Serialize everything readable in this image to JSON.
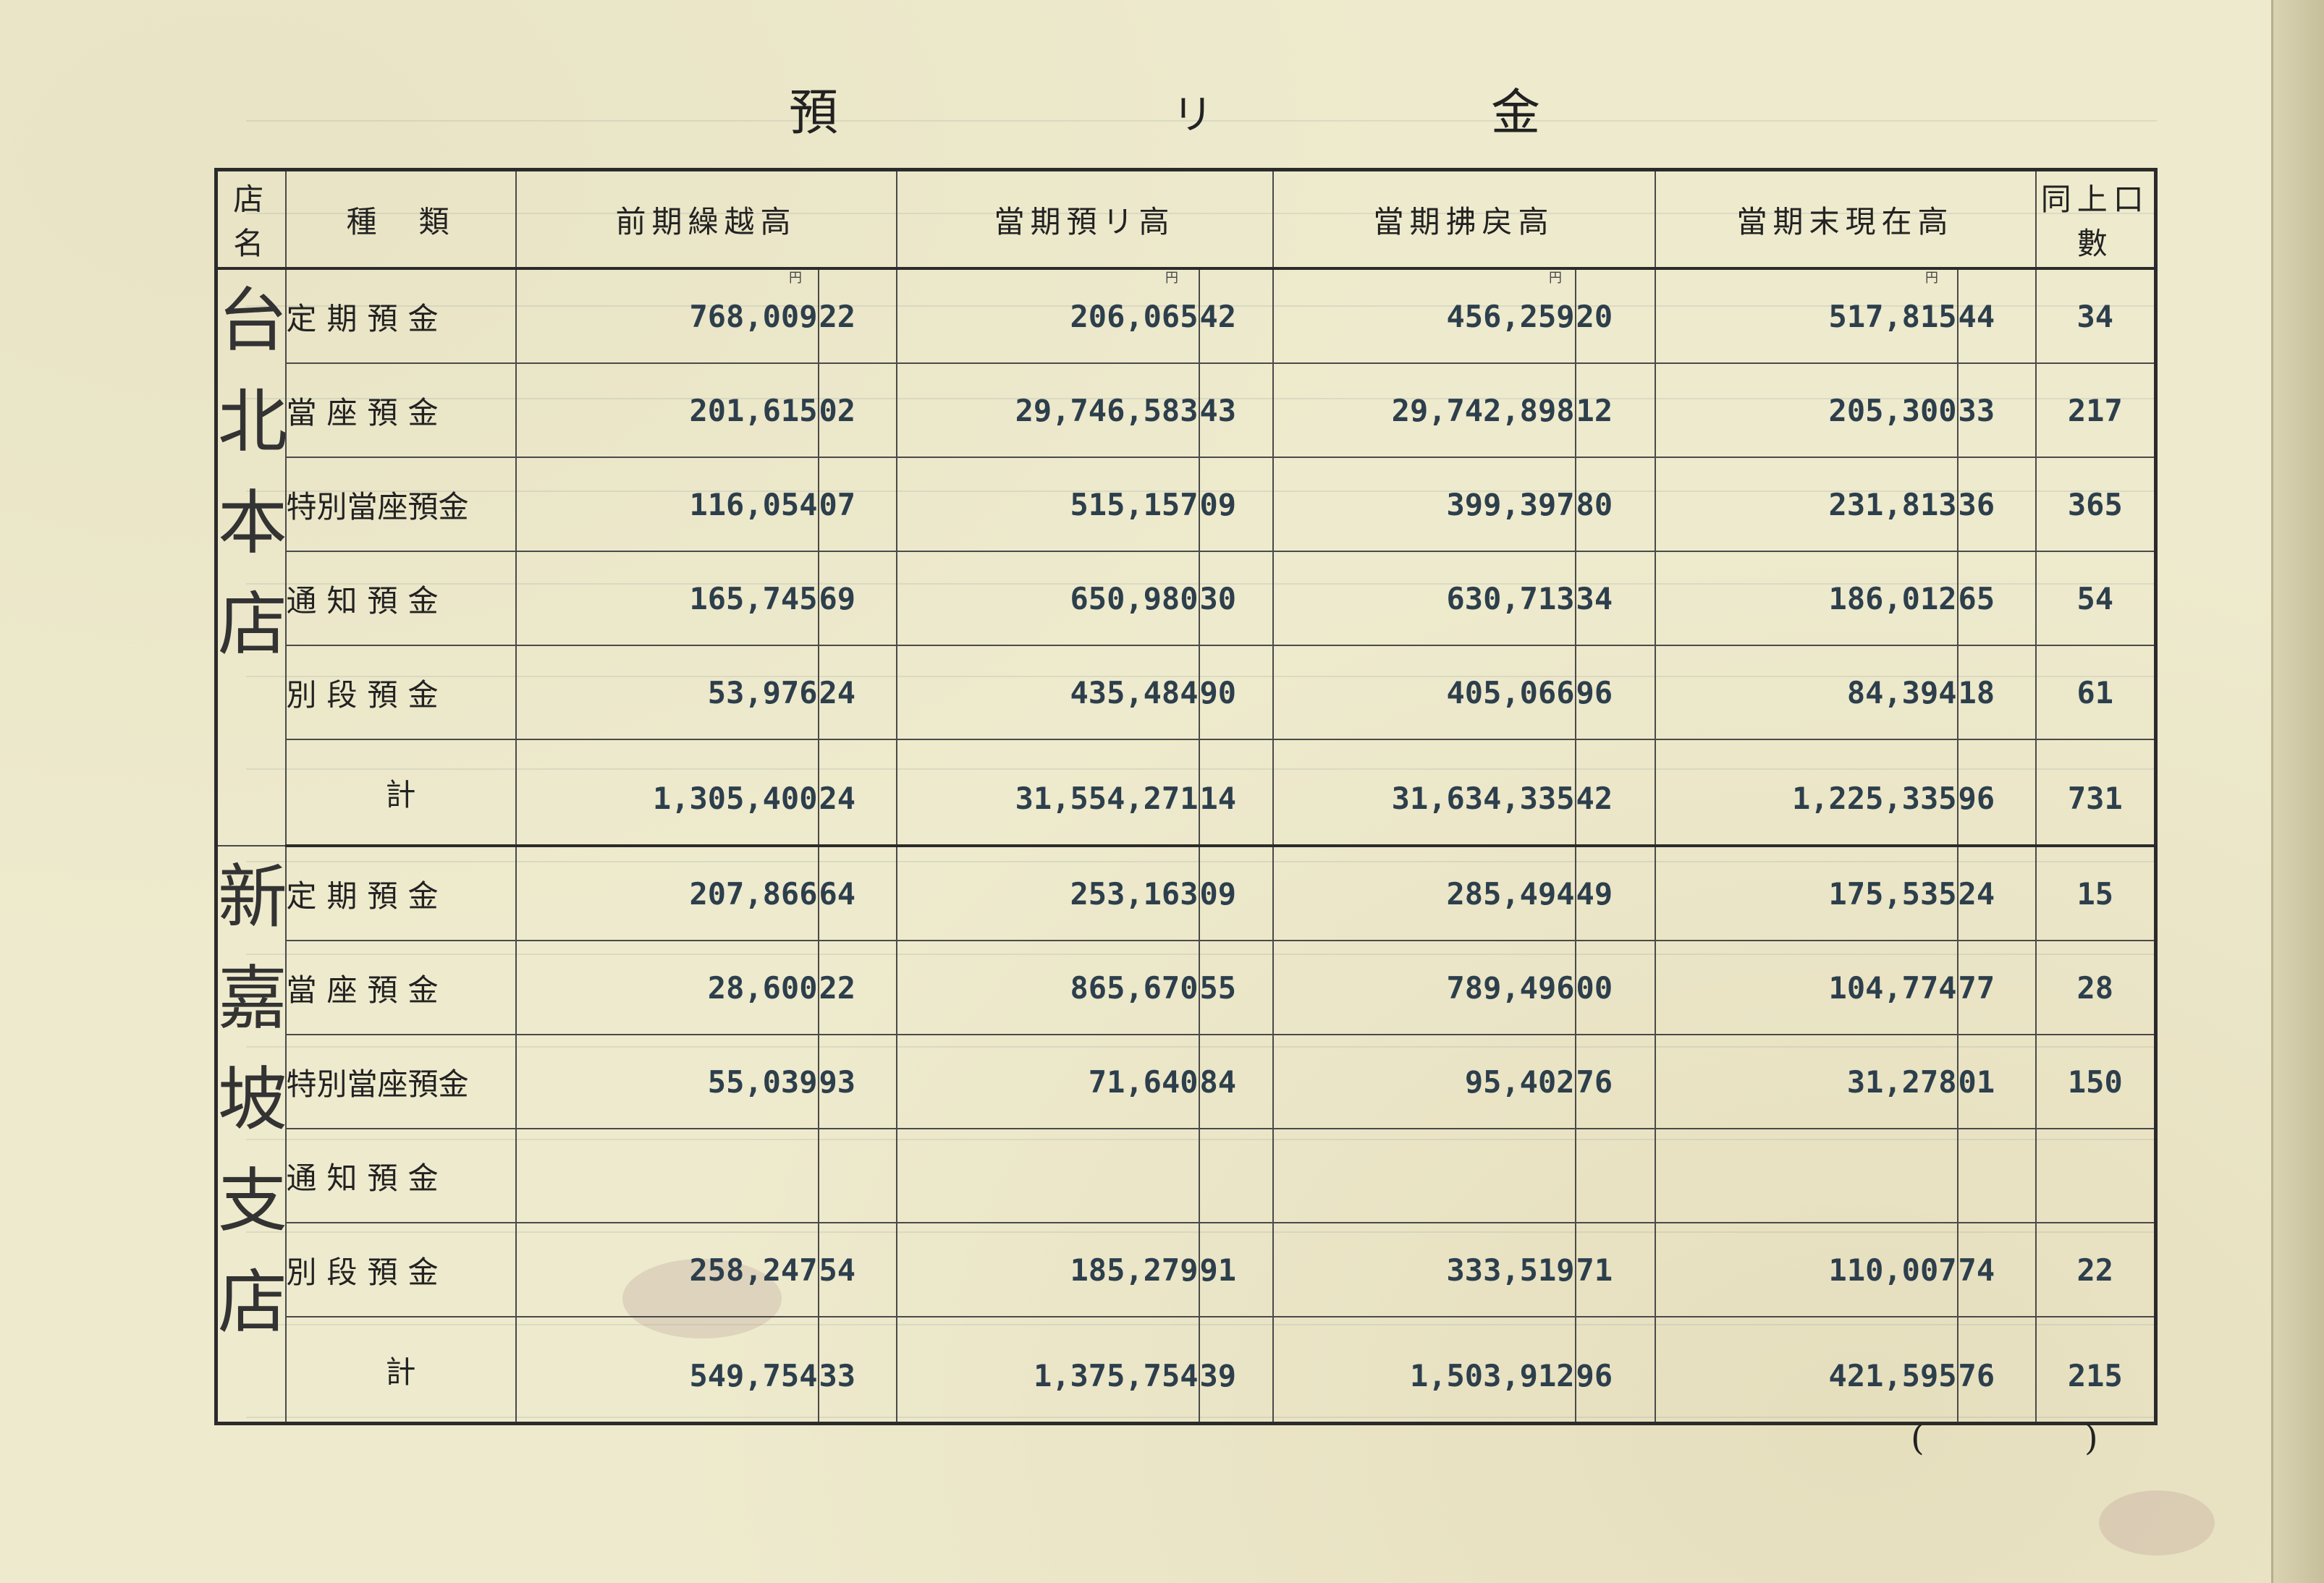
{
  "title": [
    "預",
    "リ",
    "金"
  ],
  "headers": {
    "store": "店名",
    "kind": "種　類",
    "prev": "前期繰越高",
    "deposit": "當期預リ高",
    "withdraw": "當期拂戻高",
    "balance": "當期末現在高",
    "count": "同上口數"
  },
  "currency_mark": "円",
  "stores": [
    {
      "name": "台北本店",
      "rows": [
        {
          "kind": "定期預金",
          "prev": [
            "768,009",
            "22"
          ],
          "deposit": [
            "206,065",
            "42"
          ],
          "withdraw": [
            "456,259",
            "20"
          ],
          "balance": [
            "517,815",
            "44"
          ],
          "count": "34"
        },
        {
          "kind": "當座預金",
          "prev": [
            "201,615",
            "02"
          ],
          "deposit": [
            "29,746,583",
            "43"
          ],
          "withdraw": [
            "29,742,898",
            "12"
          ],
          "balance": [
            "205,300",
            "33"
          ],
          "count": "217"
        },
        {
          "kind": "特別當座預金",
          "prev": [
            "116,054",
            "07"
          ],
          "deposit": [
            "515,157",
            "09"
          ],
          "withdraw": [
            "399,397",
            "80"
          ],
          "balance": [
            "231,813",
            "36"
          ],
          "count": "365"
        },
        {
          "kind": "通知預金",
          "prev": [
            "165,745",
            "69"
          ],
          "deposit": [
            "650,980",
            "30"
          ],
          "withdraw": [
            "630,713",
            "34"
          ],
          "balance": [
            "186,012",
            "65"
          ],
          "count": "54"
        },
        {
          "kind": "別段預金",
          "prev": [
            "53,976",
            "24"
          ],
          "deposit": [
            "435,484",
            "90"
          ],
          "withdraw": [
            "405,066",
            "96"
          ],
          "balance": [
            "84,394",
            "18"
          ],
          "count": "61"
        }
      ],
      "total": {
        "kind": "計",
        "prev": [
          "1,305,400",
          "24"
        ],
        "deposit": [
          "31,554,271",
          "14"
        ],
        "withdraw": [
          "31,634,335",
          "42"
        ],
        "balance": [
          "1,225,335",
          "96"
        ],
        "count": "731"
      }
    },
    {
      "name": "新嘉坡支店",
      "rows": [
        {
          "kind": "定期預金",
          "prev": [
            "207,866",
            "64"
          ],
          "deposit": [
            "253,163",
            "09"
          ],
          "withdraw": [
            "285,494",
            "49"
          ],
          "balance": [
            "175,535",
            "24"
          ],
          "count": "15"
        },
        {
          "kind": "當座預金",
          "prev": [
            "28,600",
            "22"
          ],
          "deposit": [
            "865,670",
            "55"
          ],
          "withdraw": [
            "789,496",
            "00"
          ],
          "balance": [
            "104,774",
            "77"
          ],
          "count": "28"
        },
        {
          "kind": "特別當座預金",
          "prev": [
            "55,039",
            "93"
          ],
          "deposit": [
            "71,640",
            "84"
          ],
          "withdraw": [
            "95,402",
            "76"
          ],
          "balance": [
            "31,278",
            "01"
          ],
          "count": "150"
        },
        {
          "kind": "通知預金",
          "prev": [
            "",
            ""
          ],
          "deposit": [
            "",
            ""
          ],
          "withdraw": [
            "",
            ""
          ],
          "balance": [
            "",
            ""
          ],
          "count": ""
        },
        {
          "kind": "別段預金",
          "prev": [
            "258,247",
            "54"
          ],
          "deposit": [
            "185,279",
            "91"
          ],
          "withdraw": [
            "333,519",
            "71"
          ],
          "balance": [
            "110,007",
            "74"
          ],
          "count": "22"
        }
      ],
      "total": {
        "kind": "計",
        "prev": [
          "549,754",
          "33"
        ],
        "deposit": [
          "1,375,754",
          "39"
        ],
        "withdraw": [
          "1,503,912",
          "96"
        ],
        "balance": [
          "421,595",
          "76"
        ],
        "count": "215"
      }
    }
  ],
  "page_number": {
    "open": "(",
    "close": ")"
  }
}
